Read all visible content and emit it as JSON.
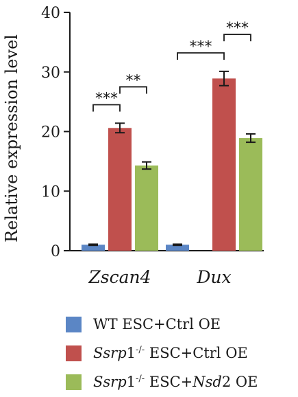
{
  "chart_data": {
    "type": "bar",
    "title": "",
    "xlabel": "",
    "ylabel": "Relative expression level",
    "ylim": [
      0,
      40
    ],
    "yticks": [
      0,
      10,
      20,
      30,
      40
    ],
    "categories": [
      "Zscan4",
      "Dux"
    ],
    "grid": false,
    "legend_position": "bottom",
    "series": [
      {
        "name": "WT ESC+Ctrl OE",
        "color": "#5b86c5",
        "values": [
          1.0,
          1.0
        ],
        "errors": [
          0.1,
          0.1
        ]
      },
      {
        "name": "Ssrp1-/- ESC+Ctrl OE",
        "color": "#c0504d",
        "values": [
          20.6,
          28.9
        ],
        "errors": [
          0.8,
          1.2
        ]
      },
      {
        "name": "Ssrp1-/- ESC+Nsd2 OE",
        "color": "#9bbb59",
        "values": [
          14.3,
          18.9
        ],
        "errors": [
          0.6,
          0.7
        ]
      }
    ],
    "significance": [
      {
        "category": 0,
        "from_series": 0,
        "to_series": 1,
        "label": "***",
        "y": 24.5
      },
      {
        "category": 0,
        "from_series": 1,
        "to_series": 2,
        "label": "**",
        "y": 27.5
      },
      {
        "category": 1,
        "from_series": 0,
        "to_series": 1,
        "label": "***",
        "y": 33.2
      },
      {
        "category": 1,
        "from_series": 1,
        "to_series": 2,
        "label": "***",
        "y": 36.3
      }
    ]
  },
  "legend": [
    {
      "color": "#5b86c5",
      "parts": [
        {
          "t": "WT ESC+Ctrl OE"
        }
      ]
    },
    {
      "color": "#c0504d",
      "parts": [
        {
          "t": "Ssrp",
          "i": true
        },
        {
          "t": "1"
        },
        {
          "t": "-/-",
          "sup": true
        },
        {
          "t": " ESC+Ctrl OE"
        }
      ]
    },
    {
      "color": "#9bbb59",
      "parts": [
        {
          "t": "Ssrp",
          "i": true
        },
        {
          "t": "1"
        },
        {
          "t": "-/-",
          "sup": true
        },
        {
          "t": " ESC+"
        },
        {
          "t": "Nsd",
          "i": true
        },
        {
          "t": "2 OE"
        }
      ]
    }
  ]
}
